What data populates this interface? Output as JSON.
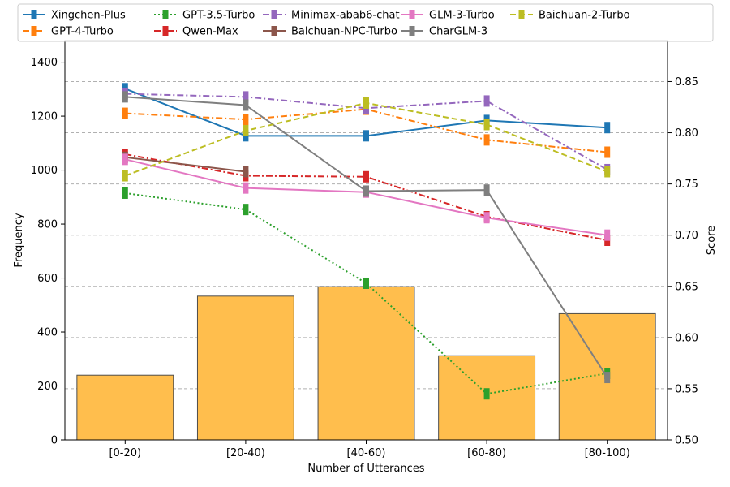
{
  "chart_data": {
    "type": "bar+line",
    "title": "",
    "categories": [
      "[0-20)",
      "[20-40)",
      "[40-60)",
      "[60-80)",
      "[80-100)"
    ],
    "xlabel": "Number of Utterances",
    "ylabel_left": "Frequency",
    "ylabel_right": "Score",
    "ylim_left": [
      0,
      1480
    ],
    "ylim_right": [
      0.5,
      0.89
    ],
    "yticks_left": [
      "0",
      "200",
      "400",
      "600",
      "800",
      "1000",
      "1200",
      "1400"
    ],
    "yticks_right": [
      "0.50",
      "0.55",
      "0.60",
      "0.65",
      "0.70",
      "0.75",
      "0.80",
      "0.85"
    ],
    "grid": "right-axis-dashed",
    "legend_position": "top",
    "bars": {
      "values": [
        240,
        533,
        568,
        312,
        468
      ],
      "color": "#ffbe4d"
    },
    "series": [
      {
        "name": "Xingchen-Plus",
        "values": [
          0.843,
          0.797,
          0.797,
          0.812,
          0.805
        ],
        "color": "#1f77b4",
        "dash": "solid"
      },
      {
        "name": "GPT-4-Turbo",
        "values": [
          0.819,
          0.813,
          0.823,
          0.793,
          0.781
        ],
        "color": "#ff7f0e",
        "dash": "dashdot"
      },
      {
        "name": "GPT-3.5-Turbo",
        "values": [
          0.741,
          0.725,
          0.653,
          0.545,
          0.565
        ],
        "color": "#2ca02c",
        "dash": "dotted"
      },
      {
        "name": "Qwen-Max",
        "values": [
          0.779,
          0.758,
          0.757,
          0.718,
          0.695
        ],
        "color": "#d62728",
        "dash": "dashdot"
      },
      {
        "name": "Minimax-abab6-chat",
        "values": [
          0.838,
          0.835,
          0.824,
          0.831,
          0.764
        ],
        "color": "#9467bd",
        "dash": "dashdot"
      },
      {
        "name": "Baichuan-NPC-Turbo",
        "values": [
          0.776,
          0.762,
          null,
          null,
          null
        ],
        "color": "#8c564b",
        "dash": "solid"
      },
      {
        "name": "GLM-3-Turbo",
        "values": [
          0.774,
          0.746,
          0.742,
          0.717,
          0.7
        ],
        "color": "#e377c2",
        "dash": "solid"
      },
      {
        "name": "CharGLM-3",
        "values": [
          0.835,
          0.827,
          0.743,
          0.744,
          0.561
        ],
        "color": "#7f7f7f",
        "dash": "solid"
      },
      {
        "name": "Baichuan-2-Turbo",
        "values": [
          0.758,
          0.802,
          0.829,
          0.808,
          0.762
        ],
        "color": "#bcbd22",
        "dash": "dashed"
      }
    ]
  }
}
